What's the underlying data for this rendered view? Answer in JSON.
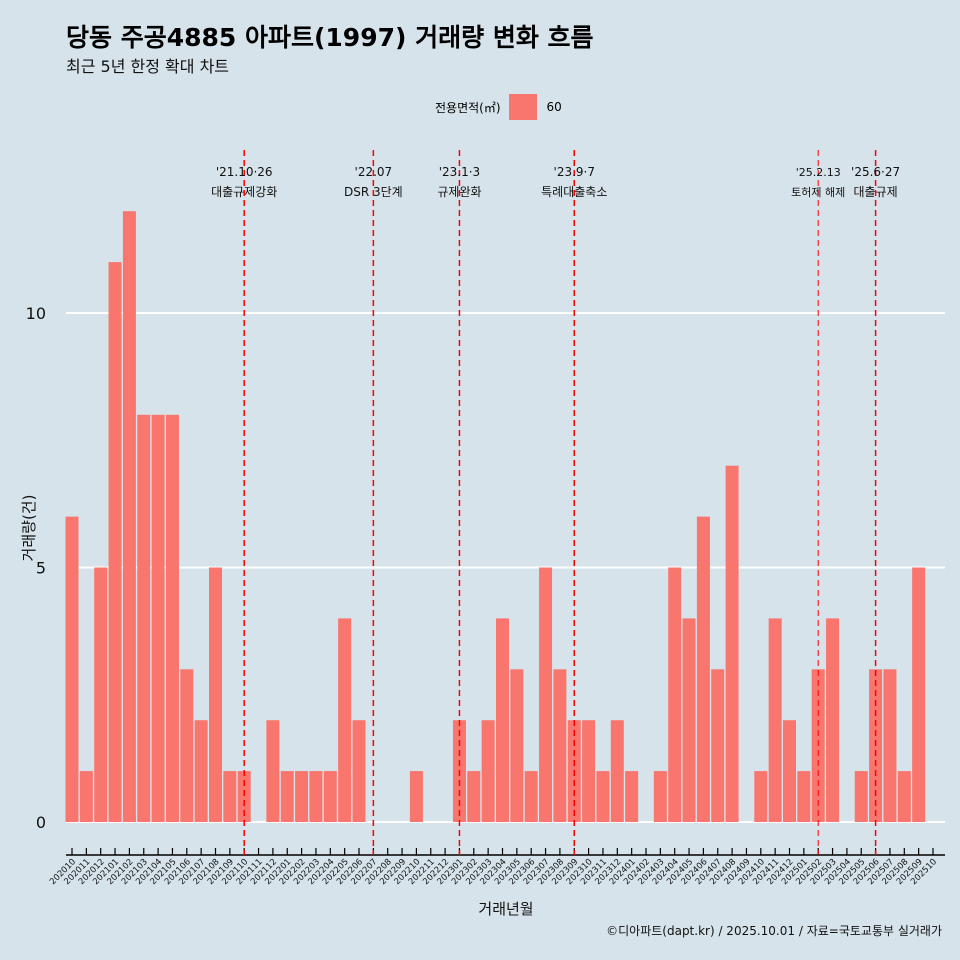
{
  "title": "당동 주공4885 아파트(1997) 거래량 변화 흐름",
  "subtitle": "최근 5년 한정 확대 차트",
  "caption": "©디아파트(dapt.kr) / 2025.10.01 / 자료=국토교통부 실거래가",
  "colors": {
    "bar": "#f8766d",
    "background": "#d6e3ea",
    "event_line": "#ff0000",
    "grid": "#ffffff"
  },
  "chart_data": {
    "type": "bar",
    "xlabel": "거래년월",
    "ylabel": "거래량(건)",
    "ylim": [
      -0.5,
      12.5
    ],
    "yticks": [
      0,
      5,
      10
    ],
    "legend": {
      "title": "전용면적(㎡)",
      "entries": [
        "60"
      ],
      "placement": "top"
    },
    "categories": [
      "202010",
      "202011",
      "202012",
      "202101",
      "202102",
      "202103",
      "202104",
      "202105",
      "202106",
      "202107",
      "202108",
      "202109",
      "202110",
      "202111",
      "202112",
      "202201",
      "202202",
      "202203",
      "202204",
      "202205",
      "202206",
      "202207",
      "202208",
      "202209",
      "202210",
      "202211",
      "202212",
      "202301",
      "202302",
      "202303",
      "202304",
      "202305",
      "202306",
      "202307",
      "202308",
      "202309",
      "202310",
      "202311",
      "202312",
      "202401",
      "202402",
      "202403",
      "202404",
      "202405",
      "202406",
      "202407",
      "202408",
      "202409",
      "202410",
      "202411",
      "202412",
      "202501",
      "202502",
      "202503",
      "202504",
      "202505",
      "202506",
      "202507",
      "202508",
      "202509",
      "202510"
    ],
    "values": [
      6,
      1,
      5,
      11,
      12,
      8,
      8,
      8,
      3,
      2,
      5,
      1,
      1,
      0,
      2,
      1,
      1,
      1,
      1,
      4,
      2,
      0,
      0,
      0,
      1,
      0,
      0,
      2,
      1,
      2,
      4,
      3,
      1,
      5,
      3,
      2,
      2,
      1,
      2,
      1,
      0,
      1,
      5,
      4,
      6,
      3,
      7,
      0,
      1,
      4,
      2,
      1,
      3,
      4,
      0,
      1,
      3,
      3,
      1,
      5,
      0
    ],
    "annotations": [
      {
        "category": "202110",
        "date": "'21.10·26",
        "label": "대출규제강화"
      },
      {
        "category": "202207",
        "date": "'22.07",
        "label": "DSR 3단계"
      },
      {
        "category": "202301",
        "date": "'23.1·3",
        "label": "규제완화"
      },
      {
        "category": "202309",
        "date": "'23.9·7",
        "label": "특례대출축소"
      },
      {
        "category": "202502",
        "date": "'25.2.13",
        "label": "토허제 해제"
      },
      {
        "category": "202506",
        "date": "'25.6·27",
        "label": "대출규제"
      }
    ]
  }
}
